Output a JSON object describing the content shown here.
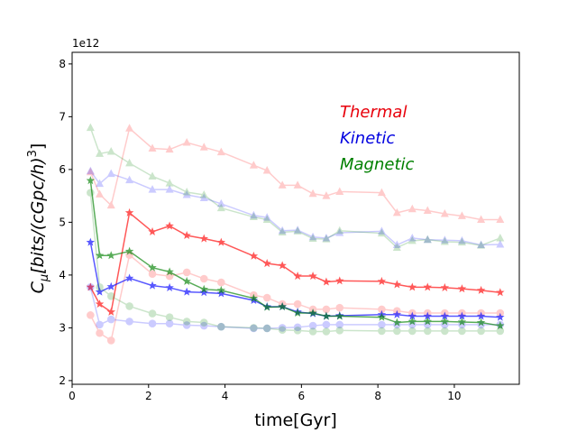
{
  "chart_data": {
    "type": "line",
    "title": "",
    "xlabel": "time[Gyr]",
    "ylabel": "C_μ[bits/(cGpc/h)^3]",
    "ylabel_parts": {
      "c": "C",
      "sub": "μ",
      "body": "[bits/(cGpc/h)",
      "sup": "3",
      "close": "]"
    },
    "offset_label": "1e12",
    "xlim": [
      0,
      11.7
    ],
    "ylim": [
      1.93,
      8.22
    ],
    "xticks": [
      0,
      2,
      4,
      6,
      8,
      10
    ],
    "yticks": [
      2,
      3,
      4,
      5,
      6,
      7,
      8
    ],
    "grid": false,
    "annotations": [
      {
        "text": "Thermal",
        "color": "#e8000b"
      },
      {
        "text": "Kinetic",
        "color": "#0000e0"
      },
      {
        "text": "Magnetic",
        "color": "#008000"
      }
    ],
    "x": [
      0.48,
      0.72,
      1.02,
      1.5,
      2.1,
      2.55,
      3.0,
      3.45,
      3.9,
      4.75,
      5.1,
      5.5,
      5.9,
      6.3,
      6.65,
      7.0,
      8.1,
      8.5,
      8.9,
      9.3,
      9.75,
      10.2,
      10.7,
      11.2
    ],
    "series": [
      {
        "name": "thermal-triangle",
        "color": "#ff0000",
        "marker": "triangle",
        "opacity": 0.2,
        "values": [
          5.95,
          5.53,
          5.32,
          6.78,
          6.4,
          6.38,
          6.51,
          6.42,
          6.33,
          6.08,
          5.98,
          5.7,
          5.7,
          5.54,
          5.5,
          5.58,
          5.56,
          5.18,
          5.25,
          5.22,
          5.16,
          5.12,
          5.05,
          5.05
        ]
      },
      {
        "name": "thermal-star",
        "color": "#ff0000",
        "marker": "star",
        "opacity": 0.65,
        "values": [
          3.77,
          3.45,
          3.3,
          5.18,
          4.82,
          4.93,
          4.75,
          4.69,
          4.62,
          4.36,
          4.22,
          4.18,
          3.98,
          3.98,
          3.87,
          3.89,
          3.88,
          3.82,
          3.77,
          3.77,
          3.76,
          3.74,
          3.71,
          3.67
        ]
      },
      {
        "name": "thermal-circle",
        "color": "#ff0000",
        "marker": "circle",
        "opacity": 0.2,
        "values": [
          3.24,
          2.9,
          2.76,
          4.38,
          4.02,
          3.98,
          4.05,
          3.93,
          3.86,
          3.62,
          3.57,
          3.45,
          3.45,
          3.35,
          3.35,
          3.38,
          3.35,
          3.32,
          3.28,
          3.28,
          3.28,
          3.28,
          3.28,
          3.28
        ]
      },
      {
        "name": "kinetic-triangle",
        "color": "#0000ff",
        "marker": "triangle",
        "opacity": 0.2,
        "values": [
          5.97,
          5.73,
          5.92,
          5.8,
          5.62,
          5.62,
          5.52,
          5.46,
          5.35,
          5.13,
          5.09,
          4.84,
          4.85,
          4.72,
          4.7,
          4.8,
          4.83,
          4.57,
          4.7,
          4.67,
          4.66,
          4.65,
          4.57,
          4.58
        ]
      },
      {
        "name": "kinetic-star",
        "color": "#0000ff",
        "marker": "star",
        "opacity": 0.65,
        "values": [
          4.62,
          3.68,
          3.78,
          3.94,
          3.8,
          3.76,
          3.68,
          3.67,
          3.65,
          3.52,
          3.4,
          3.4,
          3.3,
          3.27,
          3.22,
          3.23,
          3.25,
          3.25,
          3.22,
          3.22,
          3.22,
          3.22,
          3.22,
          3.2
        ]
      },
      {
        "name": "kinetic-circle",
        "color": "#0000ff",
        "marker": "circle",
        "opacity": 0.2,
        "values": [
          3.77,
          3.06,
          3.16,
          3.12,
          3.08,
          3.08,
          3.05,
          3.04,
          3.02,
          2.99,
          2.99,
          3.0,
          3.01,
          3.04,
          3.06,
          3.06,
          3.06,
          3.06,
          3.06,
          3.06,
          3.06,
          3.06,
          3.06,
          3.06
        ]
      },
      {
        "name": "magnetic-triangle",
        "color": "#008000",
        "marker": "triangle",
        "opacity": 0.2,
        "values": [
          6.79,
          6.3,
          6.34,
          6.12,
          5.87,
          5.74,
          5.57,
          5.52,
          5.27,
          5.1,
          5.05,
          4.81,
          4.83,
          4.69,
          4.68,
          4.84,
          4.79,
          4.52,
          4.65,
          4.67,
          4.63,
          4.62,
          4.56,
          4.7
        ]
      },
      {
        "name": "magnetic-star",
        "color": "#008000",
        "marker": "star",
        "opacity": 0.65,
        "values": [
          5.79,
          4.37,
          4.37,
          4.45,
          4.14,
          4.06,
          3.88,
          3.73,
          3.71,
          3.56,
          3.39,
          3.4,
          3.28,
          3.28,
          3.22,
          3.22,
          3.2,
          3.1,
          3.12,
          3.12,
          3.12,
          3.11,
          3.1,
          3.04
        ]
      },
      {
        "name": "magnetic-circle",
        "color": "#008000",
        "marker": "circle",
        "opacity": 0.2,
        "values": [
          5.56,
          3.77,
          3.6,
          3.41,
          3.27,
          3.2,
          3.12,
          3.1,
          3.02,
          3.0,
          2.99,
          2.96,
          2.95,
          2.93,
          2.93,
          2.95,
          2.94,
          2.94,
          2.94,
          2.94,
          2.94,
          2.94,
          2.94,
          2.94
        ]
      }
    ]
  }
}
